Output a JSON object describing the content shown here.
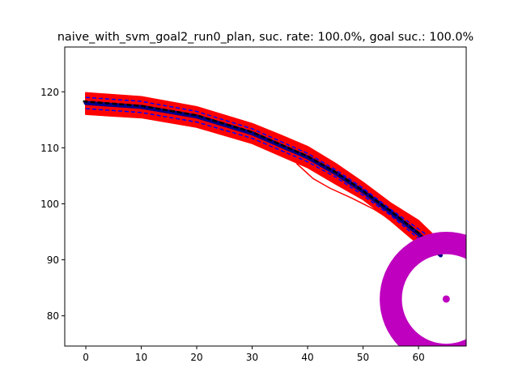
{
  "chart_data": {
    "type": "line",
    "title": "naive_with_svm_goal2_run0_plan, suc. rate: 100.0%, goal suc.: 100.0%",
    "xlabel": "",
    "ylabel": "",
    "xlim": [
      -3.8,
      68.6
    ],
    "ylim": [
      74.6,
      128.0
    ],
    "xticks": [
      0,
      10,
      20,
      30,
      40,
      50,
      60
    ],
    "yticks": [
      80,
      90,
      100,
      110,
      120
    ],
    "grid": false,
    "colors": {
      "samples": "#ff0000",
      "bounds": "#0000ff",
      "mean": "#00008b",
      "reference": "#000000",
      "goal": "#bf00bf"
    },
    "mean_path": {
      "x": [
        0,
        10,
        20,
        30,
        40,
        45,
        50,
        55,
        60,
        64
      ],
      "y": [
        118.0,
        117.3,
        115.6,
        112.6,
        108.3,
        105.5,
        102.2,
        98.5,
        94.6,
        90.8
      ]
    },
    "reference_path": {
      "x": [
        -0.5,
        10,
        20,
        30,
        40,
        45,
        50,
        55,
        60,
        64
      ],
      "y": [
        118.3,
        117.5,
        115.8,
        112.8,
        108.5,
        105.7,
        102.3,
        98.7,
        94.8,
        90.6
      ]
    },
    "upper_bound": {
      "x": [
        0,
        10,
        20,
        30,
        40,
        45,
        50,
        55,
        60,
        65
      ],
      "y": [
        119.0,
        118.3,
        116.5,
        113.4,
        109.0,
        106.1,
        102.8,
        99.0,
        95.5,
        92.0
      ]
    },
    "lower_bound": {
      "x": [
        0,
        10,
        20,
        30,
        40,
        45,
        50,
        55,
        60,
        63
      ],
      "y": [
        117.0,
        116.3,
        114.6,
        111.7,
        107.5,
        104.8,
        101.5,
        97.9,
        93.8,
        91.0
      ]
    },
    "band_upper": {
      "x": [
        0,
        10,
        20,
        30,
        35,
        40,
        45,
        50,
        55,
        60,
        65
      ],
      "y": [
        119.8,
        119.1,
        117.3,
        114.3,
        112.3,
        110.2,
        107.2,
        103.8,
        100.1,
        97.0,
        92.2
      ]
    },
    "band_lower": {
      "x": [
        0,
        10,
        20,
        30,
        40,
        45,
        50,
        55,
        60,
        62
      ],
      "y": [
        116.0,
        115.4,
        113.7,
        110.8,
        106.5,
        103.6,
        100.8,
        97.0,
        92.8,
        91.0
      ]
    },
    "outlier_samples": [
      {
        "x": [
          38,
          41,
          44,
          48,
          52,
          56
        ],
        "y": [
          107.2,
          104.5,
          102.8,
          101.0,
          99.0,
          96.5
        ]
      },
      {
        "x": [
          40,
          43,
          46,
          50,
          54,
          58
        ],
        "y": [
          106.8,
          104.8,
          103.2,
          101.3,
          98.8,
          96.0
        ]
      }
    ],
    "goal": {
      "center": [
        65.0,
        83.0
      ],
      "inner_radius": 8.0,
      "outer_radius": 12.0,
      "marker": [
        65.0,
        83.0
      ]
    }
  }
}
